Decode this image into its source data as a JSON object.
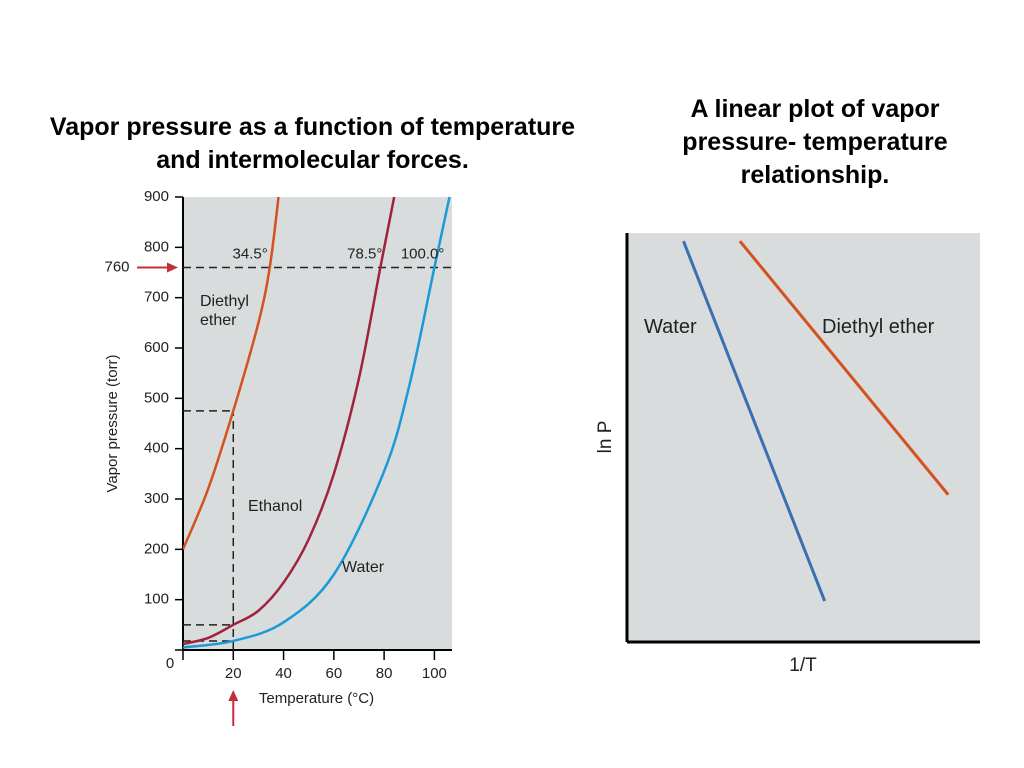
{
  "chart_data": [
    {
      "type": "line",
      "title": "Vapor pressure as a function of temperature and intermolecular forces.",
      "xlabel": "Temperature (°C)",
      "ylabel": "Vapor pressure (torr)",
      "xlim": [
        0,
        107
      ],
      "xticks": [
        0,
        20,
        40,
        60,
        80,
        100
      ],
      "ylim": [
        0,
        900
      ],
      "yticks": [
        0,
        100,
        200,
        300,
        400,
        500,
        600,
        700,
        800,
        900
      ],
      "series": [
        {
          "name": "Diethyl ether",
          "color": "#d4521f",
          "x": [
            0,
            10,
            20,
            30,
            34.5,
            38
          ],
          "values": [
            200,
            320,
            475,
            650,
            760,
            900
          ]
        },
        {
          "name": "Ethanol",
          "color": "#a0233a",
          "x": [
            0,
            10,
            20,
            30,
            40,
            50,
            60,
            70,
            78.5,
            84
          ],
          "values": [
            12,
            24,
            50,
            78,
            134,
            220,
            350,
            540,
            760,
            900
          ]
        },
        {
          "name": "Water",
          "color": "#1a9ad6",
          "x": [
            0,
            20,
            40,
            60,
            80,
            90,
            100,
            106
          ],
          "values": [
            5,
            18,
            55,
            150,
            355,
            525,
            760,
            900
          ]
        }
      ],
      "marked_pressure": 760,
      "marked_temperature": 20,
      "annotations": [
        {
          "text": "34.5°",
          "x": 34.5,
          "y": 760
        },
        {
          "text": "78.5°",
          "x": 78.5,
          "y": 760
        },
        {
          "text": "100.0°",
          "x": 100,
          "y": 760
        }
      ]
    },
    {
      "type": "line",
      "title": "A linear plot of vapor pressure- temperature relationship.",
      "xlabel": "1/T",
      "ylabel": "ln P",
      "xlim": [
        0,
        100
      ],
      "ylim": [
        0,
        100
      ],
      "series": [
        {
          "name": "Water",
          "color": "#3a6fb0",
          "x": [
            16,
            56
          ],
          "values": [
            98,
            10
          ]
        },
        {
          "name": "Diethyl ether",
          "color": "#d4521f",
          "x": [
            32,
            91
          ],
          "values": [
            98,
            36
          ]
        }
      ]
    }
  ]
}
